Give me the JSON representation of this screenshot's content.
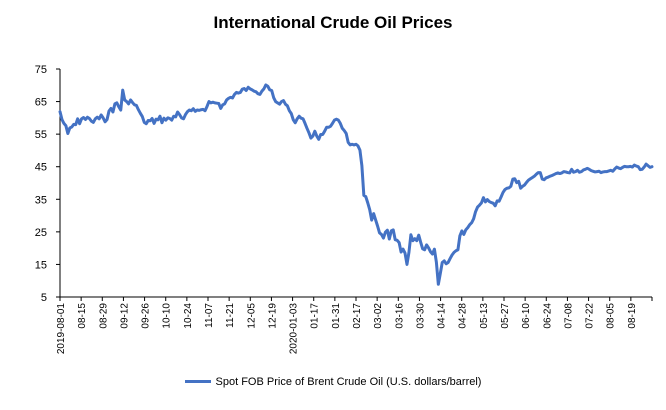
{
  "chart_data": {
    "type": "line",
    "title": "International Crude Oil Prices",
    "xlabel": "",
    "ylabel": "",
    "ylim": [
      5,
      75
    ],
    "y_ticks": [
      "5",
      "15",
      "25",
      "35",
      "45",
      "55",
      "65",
      "75"
    ],
    "x_tick_labels": [
      "2019-08-01",
      "08-15",
      "08-29",
      "09-12",
      "09-26",
      "10-10",
      "10-24",
      "11-07",
      "11-21",
      "12-05",
      "12-19",
      "2020-01-03",
      "01-17",
      "01-31",
      "02-17",
      "03-02",
      "03-16",
      "03-30",
      "04-14",
      "04-28",
      "05-13",
      "05-27",
      "06-10",
      "06-24",
      "07-08",
      "07-22",
      "08-05",
      "08-19"
    ],
    "grid": false,
    "legend_position": "bottom",
    "series": [
      {
        "name": "Spot FOB Price of Brent Crude Oil (U.S. dollars/barrel)",
        "color": "#4472C4",
        "values": [
          61.9,
          59.5,
          58.3,
          57.6,
          55.2,
          56.9,
          57.2,
          58.0,
          57.9,
          59.7,
          58.2,
          59.7,
          60.1,
          59.5,
          60.2,
          59.8,
          59.0,
          58.6,
          59.7,
          60.2,
          59.7,
          60.9,
          60.0,
          58.8,
          59.5,
          62.1,
          62.9,
          61.8,
          64.3,
          64.6,
          63.4,
          62.4,
          68.5,
          65.5,
          65.0,
          64.3,
          65.5,
          64.7,
          64.0,
          63.8,
          62.5,
          61.4,
          60.4,
          58.6,
          58.2,
          59.2,
          59.1,
          59.8,
          58.3,
          59.6,
          59.4,
          60.5,
          58.5,
          59.9,
          59.3,
          60.0,
          59.8,
          59.3,
          60.5,
          60.3,
          61.8,
          61.0,
          60.0,
          59.7,
          61.0,
          61.9,
          62.4,
          62.2,
          62.8,
          62.0,
          62.4,
          62.3,
          62.5,
          62.6,
          62.2,
          63.5,
          65.0,
          64.6,
          64.8,
          64.6,
          64.5,
          64.4,
          62.9,
          64.0,
          64.3,
          65.5,
          66.0,
          66.3,
          66.1,
          67.2,
          67.8,
          67.6,
          67.8,
          68.8,
          69.0,
          68.4,
          69.4,
          68.9,
          68.6,
          68.2,
          68.0,
          67.4,
          67.2,
          68.2,
          68.9,
          70.1,
          69.7,
          68.6,
          68.4,
          66.2,
          65.0,
          64.6,
          64.2,
          65.0,
          65.3,
          64.2,
          63.7,
          62.2,
          61.3,
          59.4,
          58.5,
          59.7,
          60.5,
          59.9,
          59.7,
          58.3,
          56.8,
          55.4,
          53.8,
          54.4,
          55.9,
          54.4,
          53.4,
          54.9,
          54.9,
          55.9,
          57.1,
          57.1,
          57.4,
          58.3,
          59.3,
          59.6,
          59.3,
          58.3,
          56.8,
          56.1,
          55.2,
          52.5,
          51.7,
          51.9,
          51.7,
          51.9,
          51.4,
          50.1,
          45.3,
          36.2,
          35.8,
          33.9,
          31.8,
          28.6,
          30.6,
          28.7,
          26.8,
          24.7,
          24.2,
          23.1,
          24.9,
          25.5,
          22.8,
          25.3,
          25.6,
          22.6,
          22.4,
          21.7,
          18.8,
          19.7,
          18.5,
          15.0,
          18.7,
          24.1,
          22.3,
          22.9,
          22.3,
          24.0,
          21.8,
          19.8,
          19.5,
          21.0,
          20.1,
          18.9,
          18.2,
          19.7,
          15.7,
          8.9,
          12.2,
          15.6,
          16.1,
          15.2,
          15.6,
          16.8,
          17.9,
          18.7,
          19.2,
          19.5,
          23.8,
          25.3,
          24.2,
          25.6,
          26.3,
          27.2,
          27.8,
          29.0,
          31.2,
          32.6,
          33.2,
          33.9,
          35.5,
          34.2,
          34.9,
          34.3,
          34.0,
          33.8,
          33.0,
          34.5,
          34.4,
          35.7,
          37.1,
          38.0,
          38.4,
          38.5,
          39.0,
          41.2,
          41.3,
          40.1,
          40.5,
          38.4,
          39.0,
          39.4,
          40.2,
          40.9,
          41.3,
          41.7,
          42.1,
          42.7,
          43.2,
          43.2,
          41.2,
          41.0,
          41.6,
          41.8,
          42.1,
          42.3,
          42.6,
          42.9,
          43.1,
          42.9,
          43.1,
          43.5,
          43.4,
          43.2,
          43.1,
          44.2,
          43.3,
          43.5,
          43.9,
          43.3,
          43.5,
          44.0,
          44.2,
          44.5,
          44.2,
          43.8,
          43.6,
          43.4,
          43.5,
          43.6,
          43.2,
          43.4,
          43.5,
          43.5,
          43.7,
          43.9,
          43.6,
          44.3,
          44.9,
          44.6,
          44.4,
          44.8,
          45.1,
          45.0,
          45.0,
          45.1,
          44.9,
          45.5,
          45.2,
          45.0,
          44.1,
          44.2,
          44.9,
          45.8,
          45.3,
          44.8,
          45.0
        ]
      }
    ]
  }
}
